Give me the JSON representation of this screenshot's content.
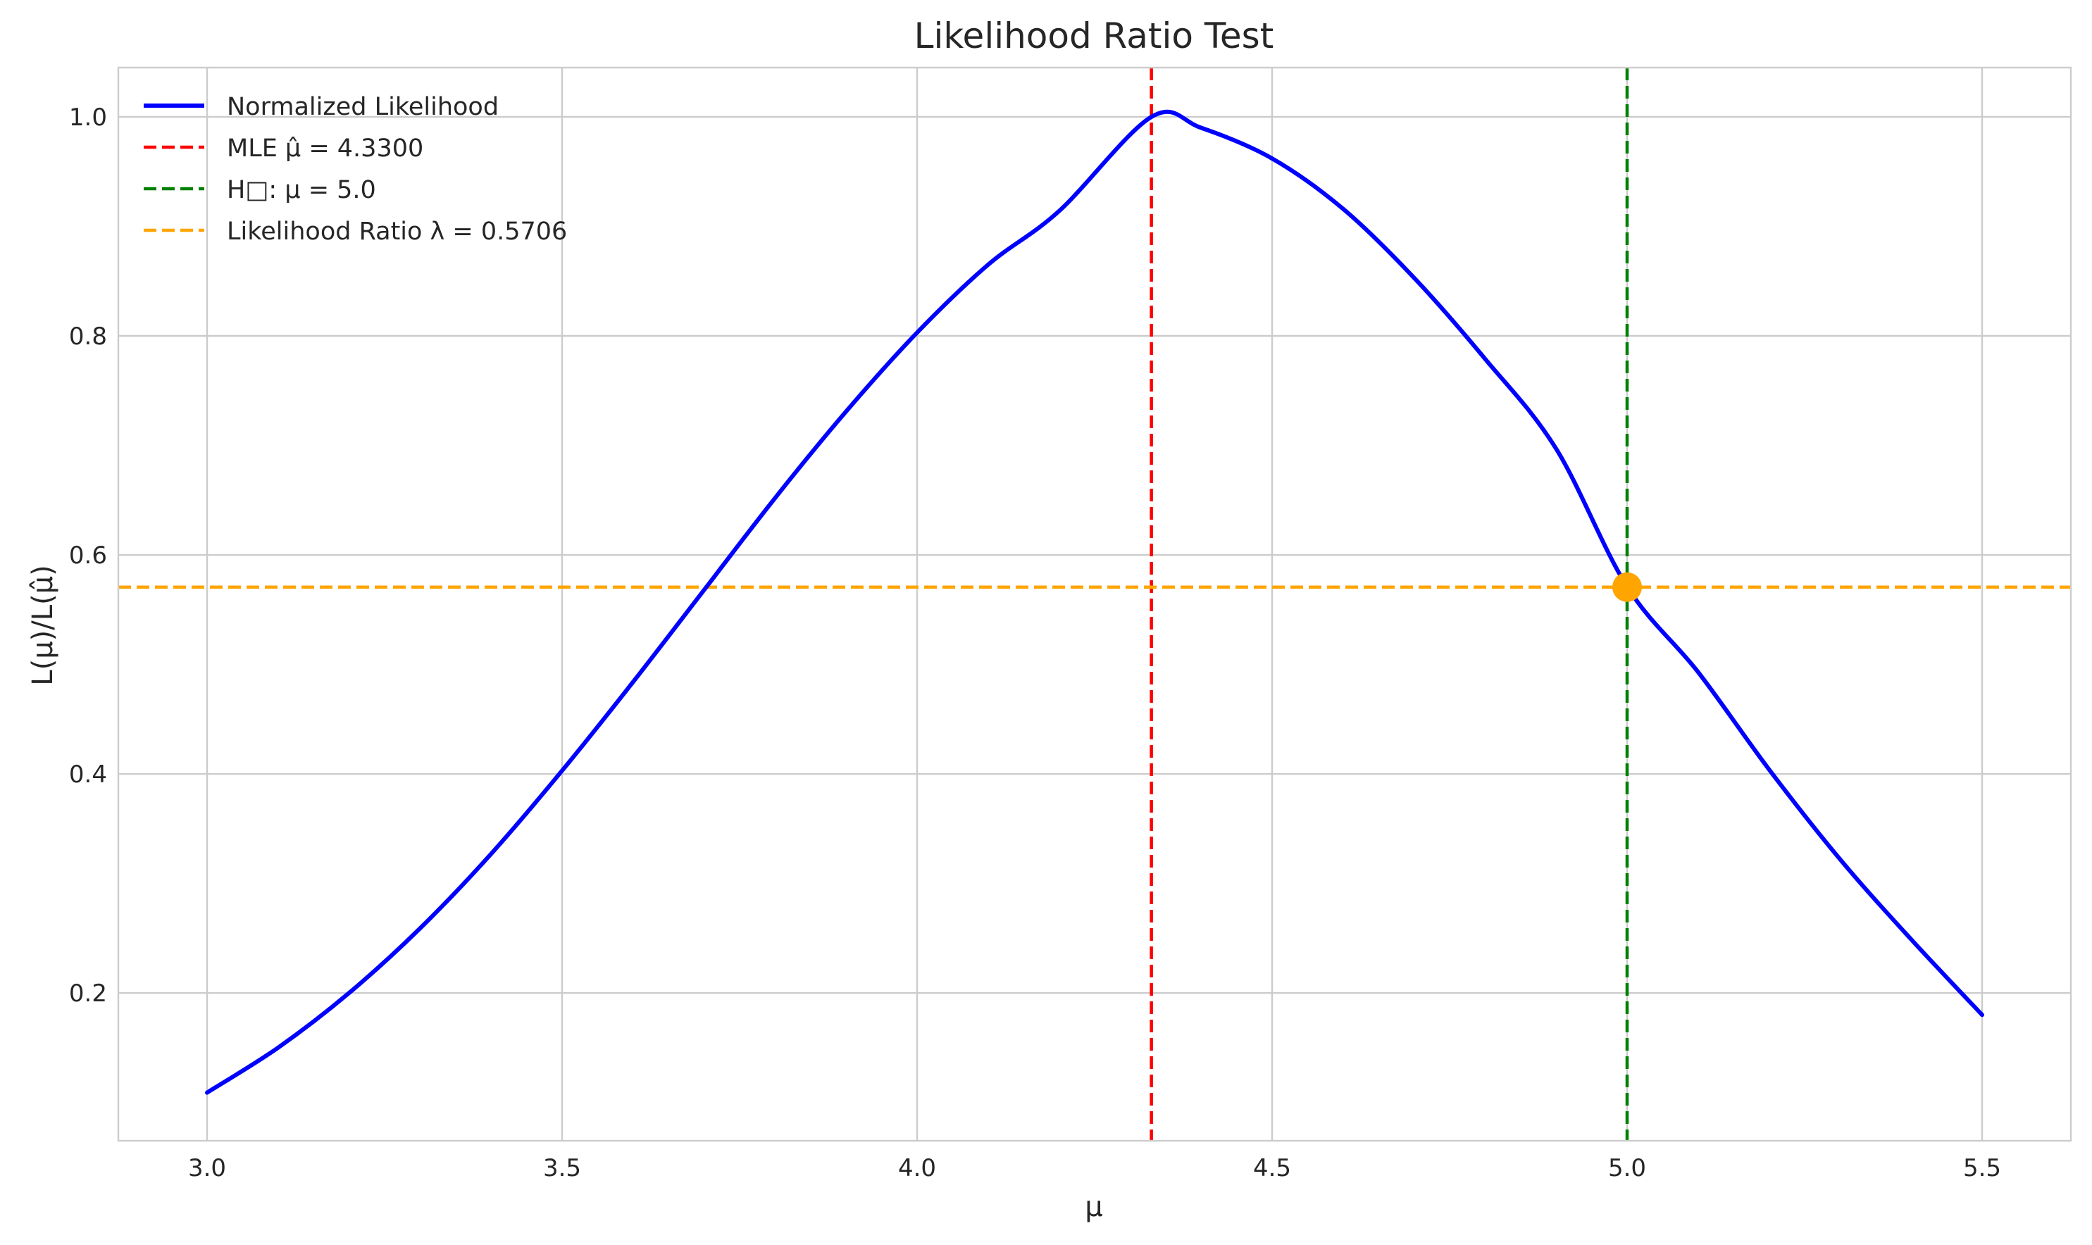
{
  "chart_data": {
    "type": "line",
    "title": "Likelihood Ratio Test",
    "xlabel": "μ",
    "ylabel": "L(μ)/L(μ̂)",
    "xlim": [
      2.875,
      5.625
    ],
    "ylim": [
      0.065,
      1.045
    ],
    "xticks": [
      "3.0",
      "3.5",
      "4.0",
      "4.5",
      "5.0",
      "5.5"
    ],
    "yticks": [
      "0.2",
      "0.4",
      "0.6",
      "0.8",
      "1.0"
    ],
    "grid": true,
    "legend_position": "top-left",
    "series": [
      {
        "name": "Normalized Likelihood",
        "color": "#0000ff",
        "style": "solid",
        "x": [
          3.0,
          3.1,
          3.2,
          3.3,
          3.4,
          3.5,
          3.6,
          3.7,
          3.8,
          3.9,
          4.0,
          4.1,
          4.2,
          4.33,
          4.4,
          4.5,
          4.6,
          4.7,
          4.8,
          4.9,
          5.0,
          5.1,
          5.2,
          5.3,
          5.4,
          5.5
        ],
        "y": [
          0.109,
          0.15,
          0.2,
          0.259,
          0.327,
          0.403,
          0.484,
          0.568,
          0.652,
          0.731,
          0.803,
          0.865,
          0.914,
          1.0,
          0.99,
          0.962,
          0.916,
          0.853,
          0.779,
          0.697,
          0.571,
          0.493,
          0.404,
          0.322,
          0.249,
          0.18
        ]
      }
    ],
    "reference_lines": [
      {
        "orientation": "vertical",
        "value": 4.33,
        "color": "#ff0000",
        "style": "dashed",
        "label": "MLE μ̂ = 4.3300"
      },
      {
        "orientation": "vertical",
        "value": 5.0,
        "color": "#008000",
        "style": "dashed",
        "label": "H□: μ = 5.0"
      },
      {
        "orientation": "horizontal",
        "value": 0.5706,
        "color": "#ffa500",
        "style": "dashed",
        "label": "Likelihood Ratio λ = 0.5706"
      }
    ],
    "highlight_point": {
      "x": 5.0,
      "y": 0.5706,
      "color": "#ffa500"
    }
  }
}
